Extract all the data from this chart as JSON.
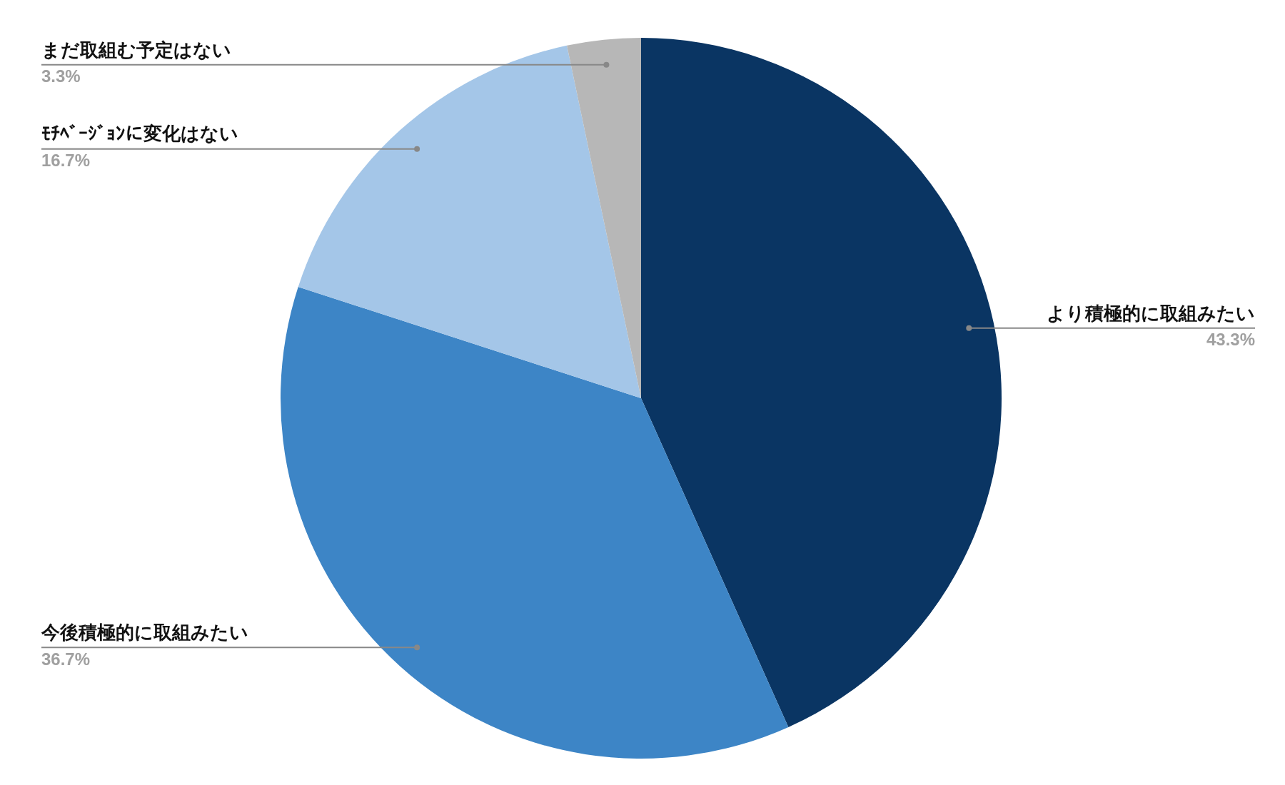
{
  "chart_data": {
    "type": "pie",
    "categories": [
      "より積極的に取組みたい",
      "今後積極的に取組みたい",
      "ﾓﾁﾍﾞｰｼﾞｮﾝに変化はない",
      "まだ取組む予定はない"
    ],
    "values": [
      43.3,
      36.7,
      16.7,
      3.3
    ],
    "value_labels": [
      "43.3%",
      "36.7%",
      "16.7%",
      "3.3%"
    ],
    "colors": [
      "#0a3563",
      "#3d85c6",
      "#a4c6e8",
      "#b7b7b7"
    ],
    "legend": false
  }
}
